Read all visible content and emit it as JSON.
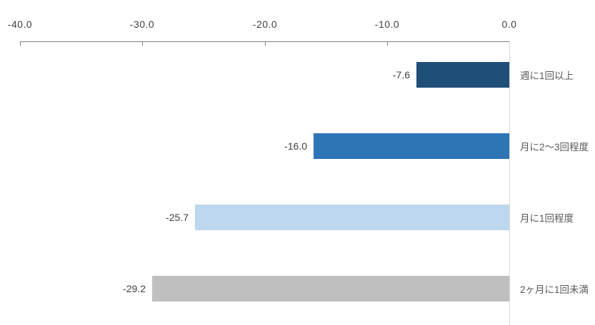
{
  "chart_data": {
    "type": "bar",
    "orientation": "horizontal",
    "title": "",
    "categories": [
      "週に1回以上",
      "月に2～3回程度",
      "月に1回程度",
      "2ヶ月に1回未満"
    ],
    "values": [
      -7.6,
      -16.0,
      -25.7,
      -29.2
    ],
    "value_labels": [
      "-7.6",
      "-16.0",
      "-25.7",
      "-29.2"
    ],
    "bar_colors": [
      "#1F4E79",
      "#2E75B6",
      "#BDD7EE",
      "#BFBFBF"
    ],
    "xlim": [
      -40,
      0
    ],
    "x_ticks": [
      -40,
      -30,
      -20,
      -10,
      0
    ],
    "x_tick_labels": [
      "-40.0",
      "-30.0",
      "-20.0",
      "-10.0",
      "0.0"
    ],
    "axis_position": "top",
    "grid": false,
    "legend": "none",
    "xlabel": "",
    "ylabel": "",
    "colors": {
      "axis_line": "#808080",
      "zero_line": "#D9D9D9",
      "tick_label_text": "#404040",
      "value_label_text": "#404040",
      "category_label_text": "#595959",
      "background": "#FFFFFF"
    }
  }
}
